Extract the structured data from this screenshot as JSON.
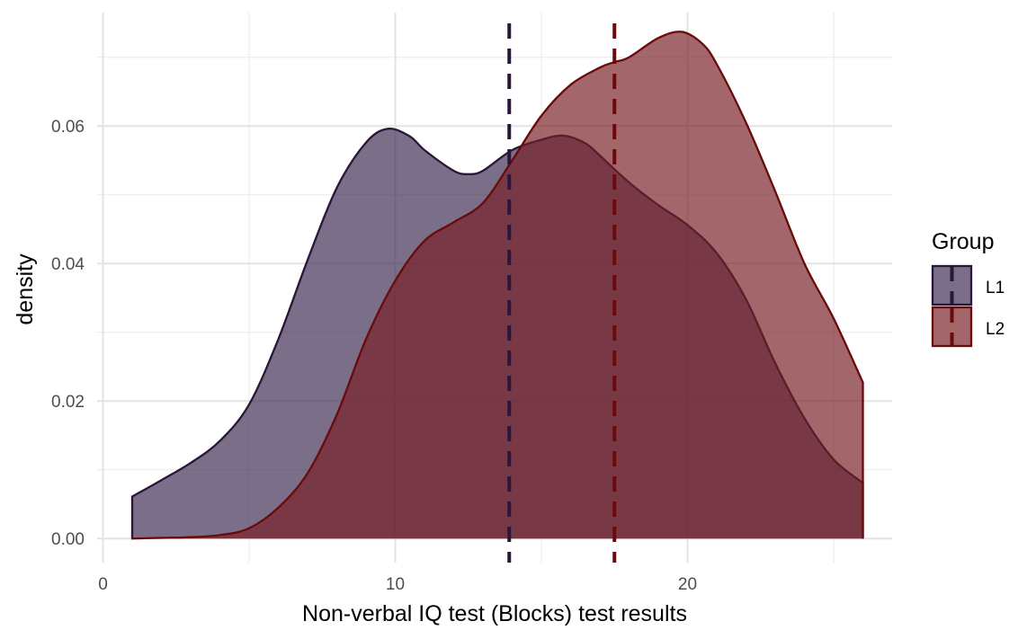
{
  "chart_data": {
    "type": "area",
    "subtype": "density",
    "xlabel": "Non-verbal IQ test (Blocks) test results",
    "ylabel": "density",
    "xlim": [
      -0.2,
      27.0
    ],
    "ylim": [
      -0.0035,
      0.0765
    ],
    "x_ticks": [
      0,
      10,
      20
    ],
    "x_tick_labels": [
      "0",
      "10",
      "20"
    ],
    "y_ticks": [
      0.0,
      0.02,
      0.04,
      0.06
    ],
    "y_tick_labels": [
      "0.00",
      "0.02",
      "0.04",
      "0.06"
    ],
    "grid": true,
    "legend": {
      "title": "Group",
      "position": "right"
    },
    "series": [
      {
        "name": "L1",
        "fill": "#3b2a4f",
        "stroke": "#2a1638",
        "opacity": 0.68,
        "mean": 13.9,
        "x": [
          1,
          2,
          3,
          4,
          5,
          6,
          7,
          8,
          9,
          9.75,
          10.5,
          11,
          12,
          12.5,
          13,
          14,
          15,
          15.75,
          16.5,
          17,
          18,
          19,
          20,
          21,
          22,
          23,
          24,
          25,
          26
        ],
        "y": [
          0.0061,
          0.0085,
          0.011,
          0.0142,
          0.0195,
          0.029,
          0.0405,
          0.051,
          0.0576,
          0.0596,
          0.0585,
          0.0565,
          0.0535,
          0.053,
          0.0535,
          0.0565,
          0.058,
          0.0586,
          0.0575,
          0.0557,
          0.0518,
          0.0485,
          0.0456,
          0.0415,
          0.0348,
          0.0255,
          0.0175,
          0.0115,
          0.0081
        ]
      },
      {
        "name": "L2",
        "fill": "#781f25",
        "stroke": "#6b0a0a",
        "opacity": 0.68,
        "mean": 17.5,
        "x": [
          1,
          2,
          3,
          4,
          5,
          6,
          7,
          8,
          9,
          10,
          11,
          12,
          13,
          14,
          15,
          16,
          17,
          17.5,
          18,
          19,
          19.8,
          20.5,
          21,
          22,
          23,
          24,
          25,
          26
        ],
        "y": [
          0.0,
          0.0001,
          0.0002,
          0.0005,
          0.0015,
          0.0045,
          0.0095,
          0.018,
          0.029,
          0.0375,
          0.0433,
          0.046,
          0.0488,
          0.055,
          0.0615,
          0.066,
          0.0685,
          0.0693,
          0.07,
          0.0728,
          0.0737,
          0.072,
          0.069,
          0.0605,
          0.0505,
          0.04,
          0.032,
          0.0227
        ]
      }
    ]
  }
}
